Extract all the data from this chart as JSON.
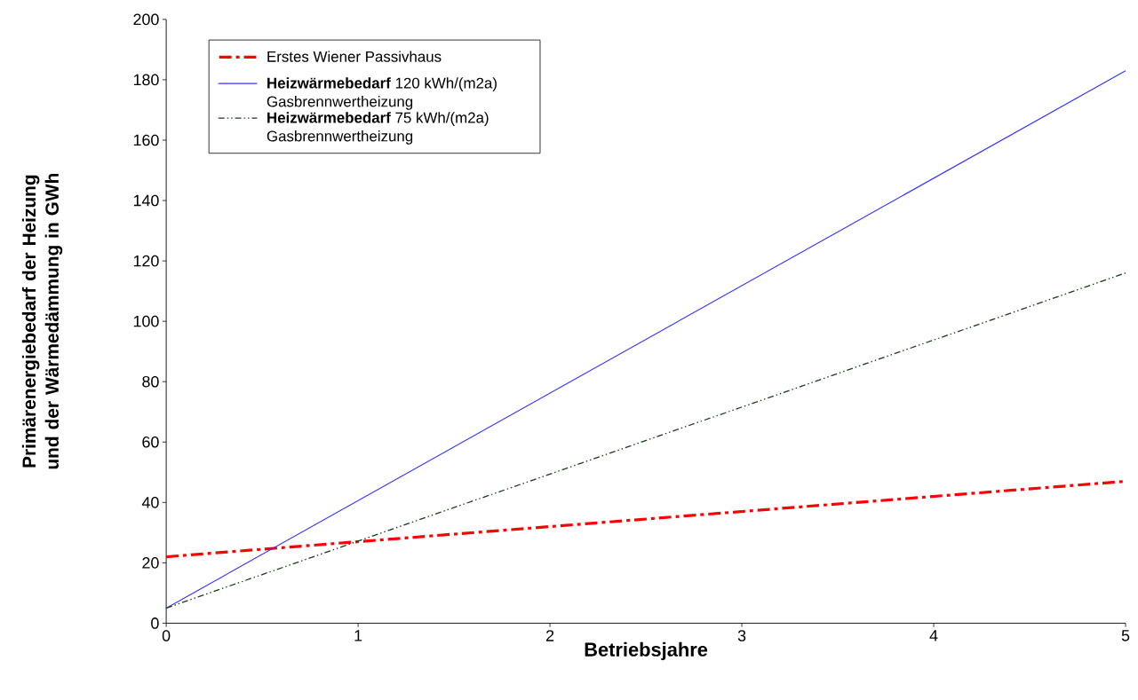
{
  "chart_data": {
    "type": "line",
    "xlabel": "Betriebsjahre",
    "ylabel": "Primärenergiebedarf der Heizung und der Wärmedämmung in GWh",
    "x": [
      0,
      5
    ],
    "series": [
      {
        "name": "Erstes Wiener Passivhaus",
        "color": "#ff0000",
        "values": [
          22,
          47
        ],
        "line_style": "dashed"
      },
      {
        "name": "**Heizwärmebedarf** 120 kWh/(m2a) Gasbrennwertheizung",
        "color": "#3333ff",
        "values": [
          5,
          183
        ],
        "line_style": "solid"
      },
      {
        "name": "**Heizwärmebedarf** 75 kWh/(m2a) Gasbrennwertheizung",
        "color": "#1a3d1a",
        "values": [
          5,
          116
        ],
        "line_style": "dotted"
      }
    ],
    "xlim": [
      0,
      5
    ],
    "xticks": [
      0,
      1,
      2,
      3,
      4,
      5
    ],
    "ylim": [
      0,
      200
    ],
    "yticks": [
      0,
      20,
      40,
      60,
      80,
      100,
      120,
      140,
      160,
      180,
      200
    ],
    "grid": false,
    "legend": "top left",
    "marker": "none"
  }
}
